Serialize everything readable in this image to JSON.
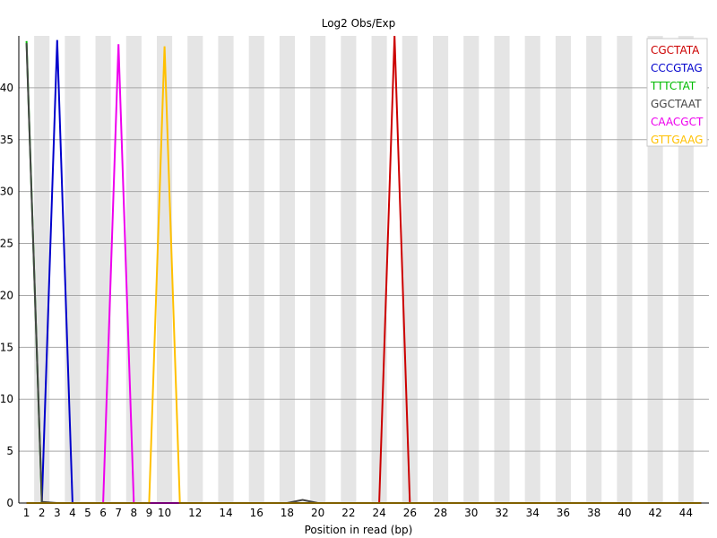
{
  "chart_data": {
    "type": "line",
    "title": "Log2 Obs/Exp",
    "xlabel": "Position in read (bp)",
    "ylabel": "",
    "x": [
      1,
      2,
      3,
      4,
      5,
      6,
      7,
      8,
      9,
      10,
      11,
      12,
      13,
      14,
      15,
      16,
      17,
      18,
      19,
      20,
      21,
      22,
      23,
      24,
      25,
      26,
      27,
      28,
      29,
      30,
      31,
      32,
      33,
      34,
      35,
      36,
      37,
      38,
      39,
      40,
      41,
      42,
      43,
      44,
      45
    ],
    "xticks": [
      "1",
      "2",
      "3",
      "4",
      "5",
      "6",
      "7",
      "8",
      "9",
      "10",
      "12",
      "14",
      "16",
      "18",
      "20",
      "22",
      "24",
      "26",
      "28",
      "30",
      "32",
      "34",
      "36",
      "38",
      "40",
      "42",
      "44"
    ],
    "ylim": [
      0,
      45
    ],
    "yticks": [
      "0",
      "5",
      "10",
      "15",
      "20",
      "25",
      "30",
      "35",
      "40"
    ],
    "grid": true,
    "legend_position": "top-right",
    "series": [
      {
        "name": "CGCTATA",
        "color": "#cc0000",
        "values": [
          0,
          0,
          0,
          0,
          0,
          0,
          0,
          0,
          0,
          0,
          0,
          0,
          0,
          0,
          0,
          0,
          0,
          0,
          0,
          0,
          0,
          0,
          0,
          0,
          45,
          0,
          0,
          0,
          0,
          0,
          0,
          0,
          0,
          0,
          0,
          0,
          0,
          0,
          0,
          0,
          0,
          0,
          0,
          0,
          0
        ]
      },
      {
        "name": "CCCGTAG",
        "color": "#0000cc",
        "values": [
          0,
          0,
          44.6,
          0,
          0,
          0,
          0,
          0,
          0,
          0,
          0,
          0,
          0,
          0,
          0,
          0,
          0,
          0,
          0,
          0,
          0,
          0,
          0,
          0,
          0,
          0,
          0,
          0,
          0,
          0,
          0,
          0,
          0,
          0,
          0,
          0,
          0,
          0,
          0,
          0,
          0,
          0,
          0,
          0,
          0
        ]
      },
      {
        "name": "TTTCTAT",
        "color": "#00bb00",
        "values": [
          44.5,
          0,
          0,
          0,
          0,
          0,
          0,
          0,
          0,
          0,
          0,
          0,
          0,
          0,
          0,
          0,
          0,
          0,
          0,
          0,
          0,
          0,
          0,
          0,
          0,
          0,
          0,
          0,
          0,
          0,
          0,
          0,
          0,
          0,
          0,
          0,
          0,
          0,
          0,
          0,
          0,
          0,
          0,
          0,
          0
        ]
      },
      {
        "name": "GGCTAAT",
        "color": "#444444",
        "values": [
          44.3,
          0.1,
          0,
          0,
          0,
          0,
          0,
          0,
          0,
          0,
          0,
          0,
          0,
          0,
          0,
          0,
          0,
          0,
          0.3,
          0,
          0,
          0,
          0,
          0,
          0,
          0,
          0,
          0,
          0,
          0,
          0,
          0,
          0,
          0,
          0,
          0,
          0,
          0,
          0,
          0,
          0,
          0,
          0,
          0,
          0
        ]
      },
      {
        "name": "CAACGCT",
        "color": "#ee00ee",
        "values": [
          0,
          0,
          0,
          0,
          0,
          0,
          44.2,
          0,
          0,
          0,
          0,
          0,
          0,
          0,
          0,
          0,
          0,
          0,
          0,
          0,
          0,
          0,
          0,
          0,
          0,
          0,
          0,
          0,
          0,
          0,
          0,
          0,
          0,
          0,
          0,
          0,
          0,
          0,
          0,
          0,
          0,
          0,
          0,
          0,
          0
        ]
      },
      {
        "name": "GTTGAAG",
        "color": "#ffc000",
        "values": [
          0,
          0,
          0,
          0,
          0,
          0,
          0,
          0,
          0,
          44,
          0,
          0,
          0,
          0,
          0,
          0,
          0,
          0,
          0,
          0,
          0,
          0,
          0,
          0,
          0,
          0,
          0,
          0,
          0,
          0,
          0,
          0,
          0,
          0,
          0,
          0,
          0,
          0,
          0,
          0,
          0,
          0,
          0,
          0,
          0
        ]
      }
    ]
  }
}
